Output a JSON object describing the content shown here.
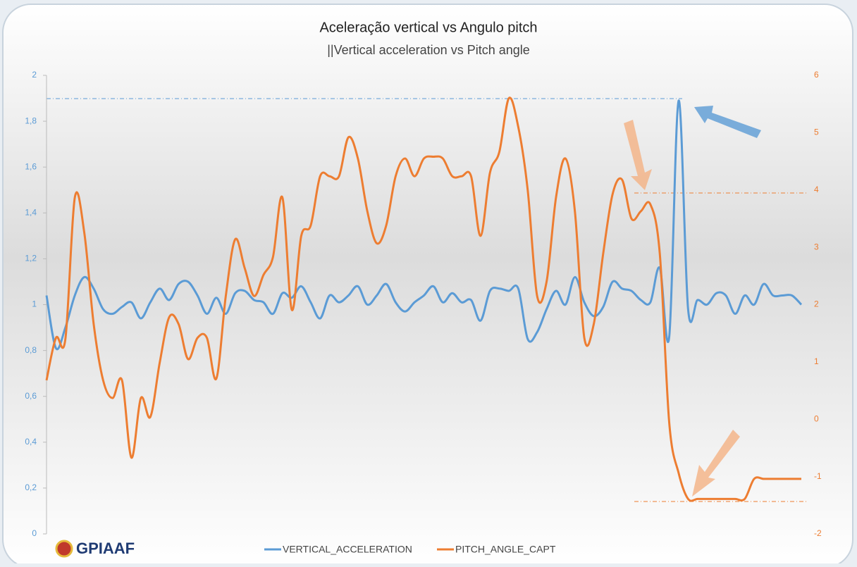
{
  "chart_data": {
    "type": "line",
    "title": "Aceleração vertical vs Angulo pitch",
    "subtitle": "||Vertical acceleration vs Pitch angle",
    "logo": "GPIAAF",
    "categories": [
      null,
      null,
      null,
      null,
      null,
      null,
      null,
      null,
      null,
      null,
      null,
      null,
      null,
      null,
      null,
      null,
      null,
      null,
      null,
      null,
      null,
      null,
      null,
      null,
      null,
      null,
      null,
      null,
      null,
      null,
      null,
      null,
      null,
      null,
      null,
      null,
      null,
      null,
      null,
      null,
      null,
      null,
      null,
      null,
      null,
      null,
      null,
      null,
      null,
      null,
      null,
      null,
      null,
      null,
      null,
      null,
      null,
      null,
      null,
      null,
      null,
      null,
      null,
      null,
      null,
      null,
      null,
      null,
      null,
      null,
      null,
      null,
      null,
      null,
      null,
      null,
      null,
      null,
      null,
      null,
      null
    ],
    "ylim": [
      0,
      2
    ],
    "yticks": [
      0,
      {
        "value": 0.2,
        "label": "0,2"
      },
      {
        "value": 0.4,
        "label": "0,4"
      },
      {
        "value": 0.6,
        "label": "0,6"
      },
      {
        "value": 0.8,
        "label": "0,8"
      },
      1,
      {
        "value": 1.2,
        "label": "1,2"
      },
      {
        "value": 1.4,
        "label": "1,4"
      },
      {
        "value": 1.6,
        "label": "1,6"
      },
      {
        "value": 1.8,
        "label": "1,8"
      },
      2
    ],
    "y2lim": [
      -2,
      6
    ],
    "y2ticks": [
      -2,
      -1,
      0,
      1,
      2,
      3,
      4,
      5,
      6
    ],
    "legend": "bottom",
    "series": [
      {
        "name": "VERTICAL_ACCELERATION",
        "color": "#5b9bd5",
        "values": [
          1.04,
          0.81,
          0.9,
          1.04,
          1.12,
          1.07,
          0.98,
          0.96,
          0.99,
          1.01,
          0.94,
          1.01,
          1.07,
          1.02,
          1.09,
          1.1,
          1.04,
          0.96,
          1.03,
          0.96,
          1.05,
          1.06,
          1.02,
          1.01,
          0.96,
          1.05,
          1.03,
          1.08,
          1.01,
          0.94,
          1.04,
          1.01,
          1.04,
          1.08,
          1.0,
          1.04,
          1.09,
          1.01,
          0.97,
          1.01,
          1.04,
          1.08,
          1.01,
          1.05,
          1.01,
          1.02,
          0.93,
          1.06,
          1.07,
          1.06,
          1.07,
          0.85,
          0.88,
          0.98,
          1.06,
          1.0,
          1.12,
          1.01,
          0.95,
          0.99,
          1.1,
          1.07,
          1.06,
          1.02,
          1.01,
          1.16,
          0.86,
          1.89,
          0.98,
          1.02,
          1.0,
          1.05,
          1.04,
          0.96,
          1.04,
          1.0,
          1.09,
          1.04,
          1.04,
          1.04,
          1.0
        ]
      },
      {
        "name": "PITCH_ANGLE_CAPT",
        "color": "#ed7d31",
        "axis": "y2",
        "values": [
          0.68,
          1.42,
          1.4,
          3.87,
          3.26,
          1.66,
          0.68,
          0.37,
          0.68,
          -0.67,
          0.37,
          0.04,
          0.99,
          1.78,
          1.66,
          1.05,
          1.42,
          1.42,
          0.71,
          2.15,
          3.14,
          2.64,
          2.15,
          2.52,
          2.83,
          3.87,
          1.91,
          3.2,
          3.38,
          4.24,
          4.24,
          4.24,
          4.92,
          4.55,
          3.63,
          3.07,
          3.38,
          4.24,
          4.55,
          4.24,
          4.55,
          4.58,
          4.55,
          4.24,
          4.24,
          4.24,
          3.2,
          4.3,
          4.67,
          5.6,
          5.1,
          4.0,
          2.15,
          2.4,
          3.87,
          4.55,
          3.63,
          1.42,
          1.66,
          2.89,
          3.93,
          4.18,
          3.5,
          3.63,
          3.75,
          2.89,
          -0.06,
          -0.94,
          -1.39,
          -1.39,
          -1.39,
          -1.39,
          -1.39,
          -1.39,
          -1.39,
          -1.04,
          -1.04,
          -1.04,
          -1.04,
          -1.04,
          -1.04
        ]
      }
    ]
  }
}
